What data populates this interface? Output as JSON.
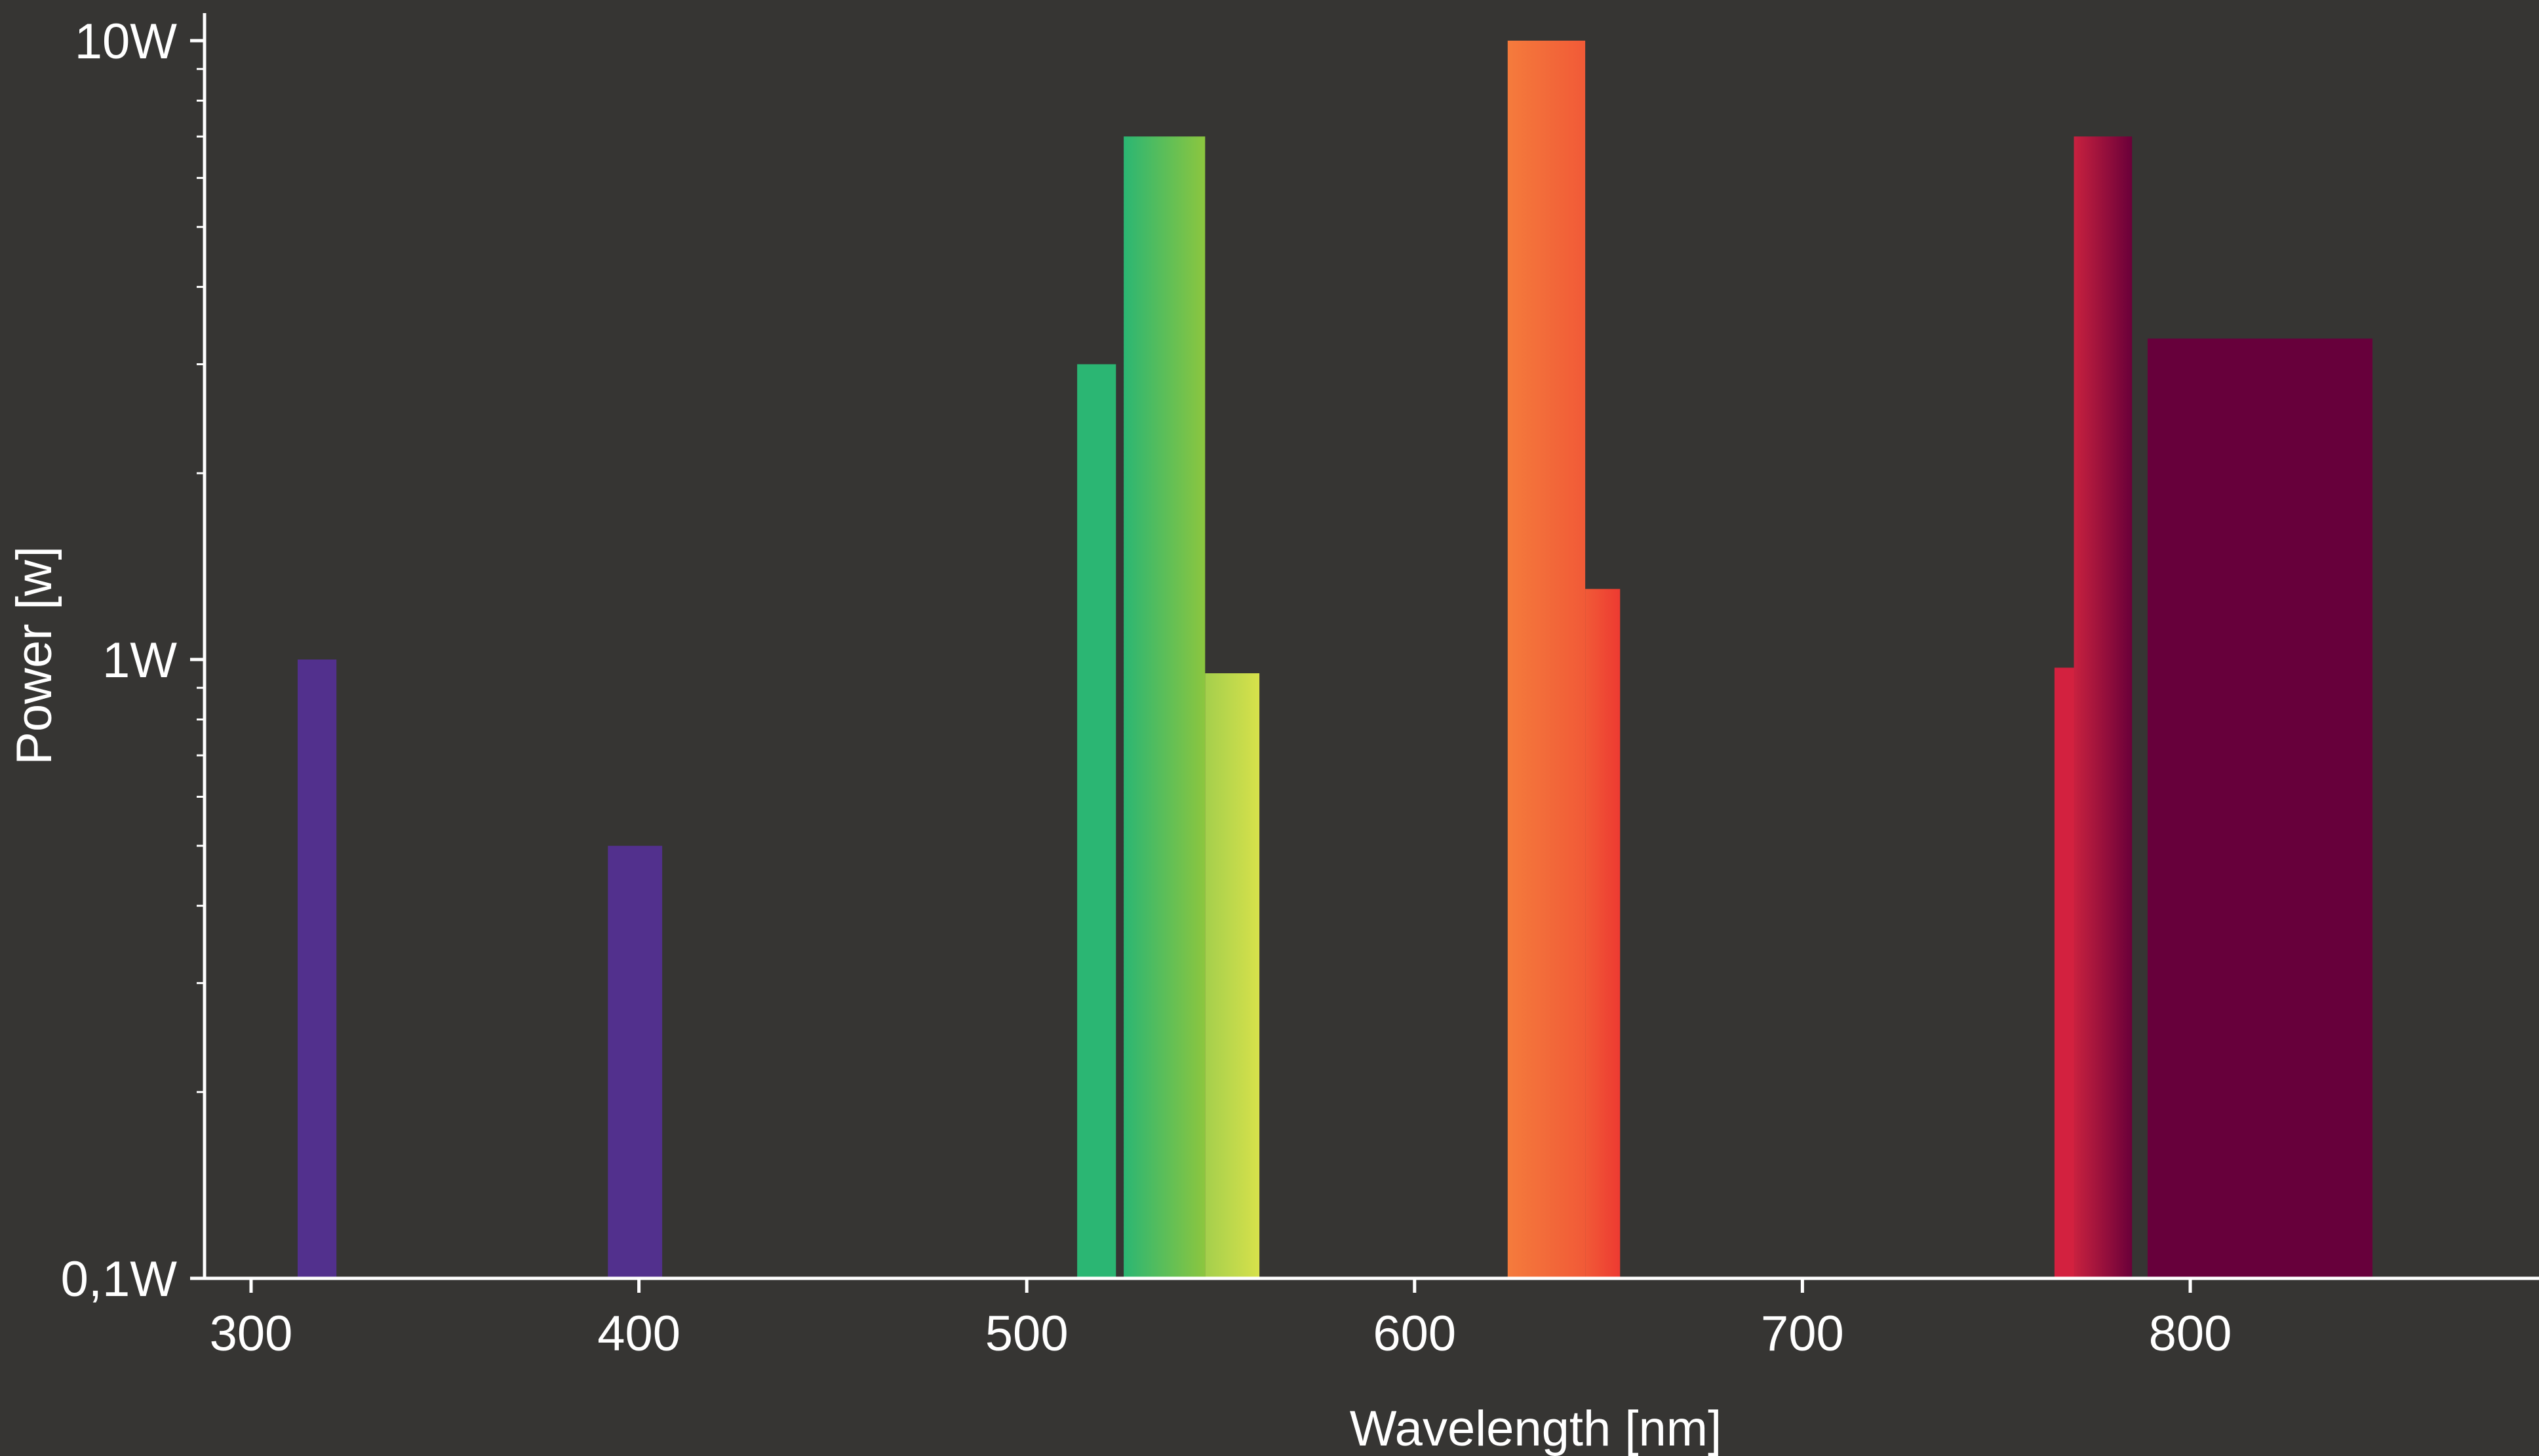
{
  "chart_data": {
    "type": "bar",
    "xlabel": "Wavelength [nm]",
    "ylabel": "Power [w]",
    "x_scale": "linear",
    "y_scale": "log",
    "xlim": [
      288,
      888
    ],
    "ylim": [
      0.1,
      12
    ],
    "x_ticks": [
      {
        "value": 300,
        "label": "300"
      },
      {
        "value": 400,
        "label": "400"
      },
      {
        "value": 500,
        "label": "500"
      },
      {
        "value": 600,
        "label": "600"
      },
      {
        "value": 700,
        "label": "700"
      },
      {
        "value": 800,
        "label": "800"
      }
    ],
    "y_ticks": [
      {
        "value": 0.1,
        "label": "0,1W"
      },
      {
        "value": 1,
        "label": "1W"
      },
      {
        "value": 10,
        "label": "10W"
      }
    ],
    "grid": false,
    "legend": "none",
    "bars": [
      {
        "x_start": 312,
        "x_end": 322,
        "value": 1.0,
        "colors": [
          "#52308d",
          "#52308d"
        ]
      },
      {
        "x_start": 392,
        "x_end": 406,
        "value": 0.5,
        "colors": [
          "#52308d",
          "#52308d"
        ]
      },
      {
        "x_start": 513,
        "x_end": 523,
        "value": 3.0,
        "colors": [
          "#2bb673",
          "#2bb673"
        ]
      },
      {
        "x_start": 525,
        "x_end": 546,
        "value": 7.0,
        "colors": [
          "#2bb673",
          "#8cc63f"
        ]
      },
      {
        "x_start": 546,
        "x_end": 560,
        "value": 0.95,
        "colors": [
          "#a4cf4c",
          "#d7e14b"
        ]
      },
      {
        "x_start": 624,
        "x_end": 644,
        "value": 10.0,
        "colors": [
          "#f47b3c",
          "#f15a37"
        ]
      },
      {
        "x_start": 644,
        "x_end": 653,
        "value": 1.3,
        "colors": [
          "#f15a37",
          "#ed3a31"
        ]
      },
      {
        "x_start": 765,
        "x_end": 770,
        "value": 0.97,
        "colors": [
          "#d3213f",
          "#d3213f"
        ]
      },
      {
        "x_start": 770,
        "x_end": 785,
        "value": 7.0,
        "colors": [
          "#c8213f",
          "#6a0039"
        ]
      },
      {
        "x_start": 789,
        "x_end": 847,
        "value": 3.3,
        "colors": [
          "#67003b",
          "#67003b"
        ]
      }
    ]
  }
}
